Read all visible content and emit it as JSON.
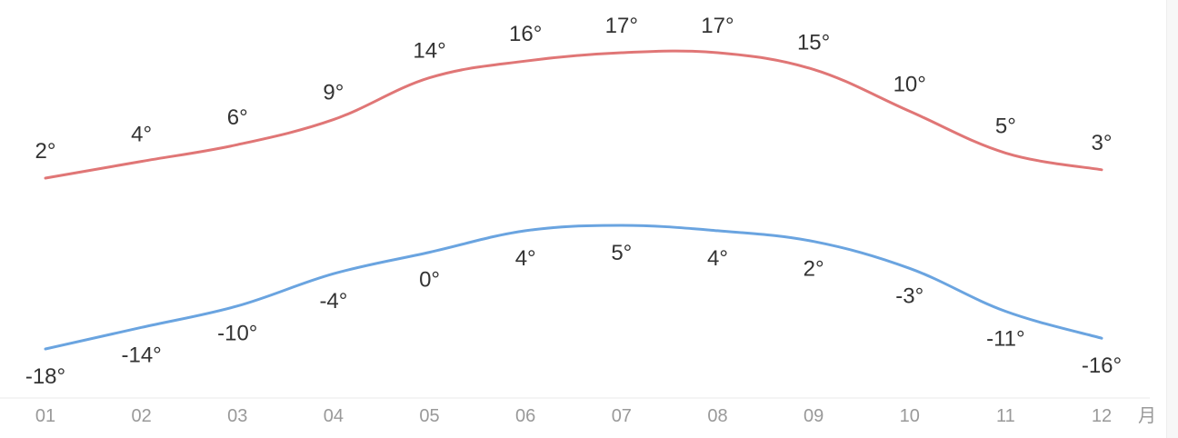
{
  "chart_data": {
    "type": "line",
    "categories": [
      "01",
      "02",
      "03",
      "04",
      "05",
      "06",
      "07",
      "08",
      "09",
      "10",
      "11",
      "12"
    ],
    "x_unit": "月",
    "value_suffix": "°",
    "series": [
      {
        "key": "high",
        "values": [
          2,
          4,
          6,
          9,
          14,
          16,
          17,
          17,
          15,
          10,
          5,
          3
        ],
        "labels": [
          "2°",
          "4°",
          "6°",
          "9°",
          "14°",
          "16°",
          "17°",
          "17°",
          "15°",
          "10°",
          "5°",
          "3°"
        ],
        "color": "#e07676"
      },
      {
        "key": "low",
        "values": [
          -18,
          -14,
          -10,
          -4,
          0,
          4,
          5,
          4,
          2,
          -3,
          -11,
          -16
        ],
        "labels": [
          "-18°",
          "-14°",
          "-10°",
          "-4°",
          "0°",
          "4°",
          "5°",
          "4°",
          "2°",
          "-3°",
          "-11°",
          "-16°"
        ],
        "color": "#6aa4e0"
      }
    ],
    "grid": false,
    "legend": "none",
    "axis_color": "#e8e8e8",
    "label_color": "#333333",
    "tick_color": "#999999"
  }
}
